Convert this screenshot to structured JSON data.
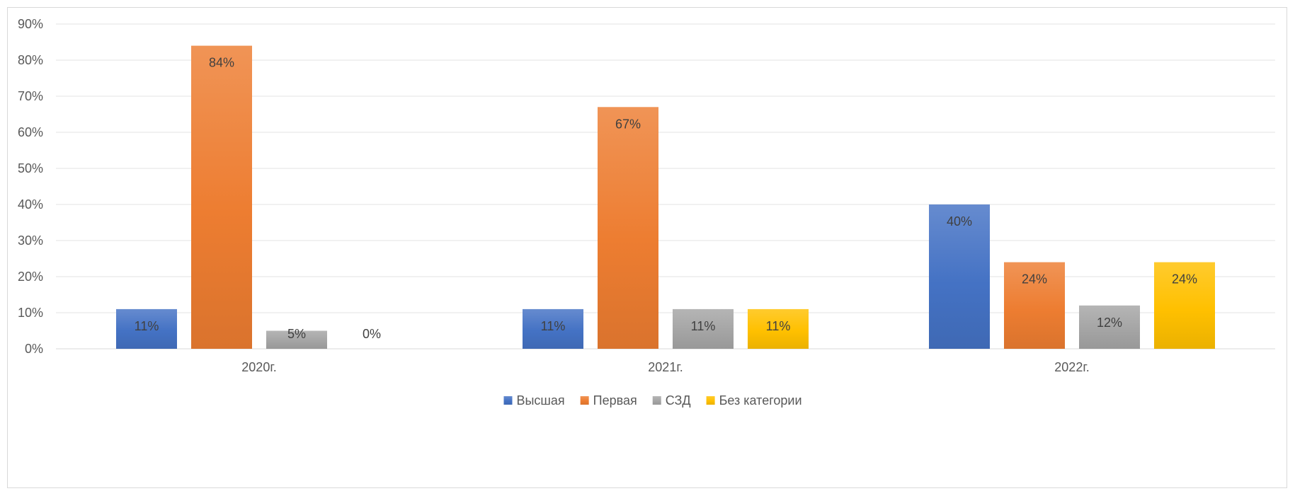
{
  "chart_data": {
    "type": "bar",
    "categories": [
      "2020г.",
      "2021г.",
      "2022г."
    ],
    "series": [
      {
        "name": "Высшая",
        "values": [
          11,
          11,
          40
        ],
        "labels": [
          "11%",
          "11%",
          "40%"
        ],
        "color": "#4472c4"
      },
      {
        "name": "Первая",
        "values": [
          84,
          67,
          24
        ],
        "labels": [
          "84%",
          "67%",
          "24%"
        ],
        "color": "#ed7d31"
      },
      {
        "name": "СЗД",
        "values": [
          5,
          11,
          12
        ],
        "labels": [
          "5%",
          "11%",
          "12%"
        ],
        "color": "#a5a5a5"
      },
      {
        "name": "Без категории",
        "values": [
          0,
          11,
          24
        ],
        "labels": [
          "0%",
          "11%",
          "24%"
        ],
        "color": "#ffc000"
      }
    ],
    "yticks": [
      "0%",
      "10%",
      "20%",
      "30%",
      "40%",
      "50%",
      "60%",
      "70%",
      "80%",
      "90%"
    ],
    "ylim": [
      0,
      90
    ],
    "grid": true,
    "legend": "bottom"
  }
}
